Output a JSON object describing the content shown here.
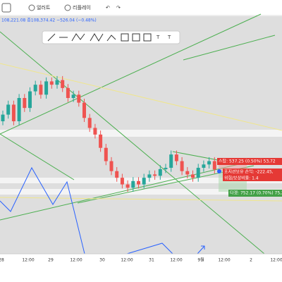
{
  "topbar": {
    "alert": "얼러트",
    "replay": "리플레이"
  },
  "header": {
    "quote": "108,221.08 종108,374.42 −526.04 (−0.48%)"
  },
  "position": {
    "stop": "스탑: 537.25 (0.50%) 53,72",
    "pnl": "포지션보유 손익: -222.45, ",
    "ratio": "위험/보상비율: 1.4",
    "target": "타겟: 752.17 (0.70%) 75,217."
  },
  "chart_data": {
    "type": "candlestick",
    "ylim": [
      107000,
      110500
    ],
    "x_labels": [
      "28",
      "12:00",
      "29",
      "12:00",
      "30",
      "12:00",
      "31",
      "12:00",
      "9월",
      "12:00",
      "2",
      "12:00"
    ],
    "up_color": "#26a69a",
    "down_color": "#ef5350",
    "candles": [
      [
        109100,
        109260,
        109040,
        109200
      ],
      [
        109200,
        109410,
        109140,
        109350
      ],
      [
        109350,
        109410,
        109040,
        109100
      ],
      [
        109100,
        109510,
        109040,
        109450
      ],
      [
        109450,
        109510,
        109240,
        109300
      ],
      [
        109300,
        109610,
        109240,
        109550
      ],
      [
        109550,
        109710,
        109490,
        109650
      ],
      [
        109650,
        109710,
        109440,
        109500
      ],
      [
        109500,
        109760,
        109440,
        109700
      ],
      [
        109700,
        109760,
        109590,
        109650
      ],
      [
        109650,
        109780,
        109590,
        109720
      ],
      [
        109720,
        109780,
        109540,
        109600
      ],
      [
        109600,
        109660,
        109390,
        109450
      ],
      [
        109450,
        109560,
        109390,
        109500
      ],
      [
        109500,
        109560,
        109320,
        109380
      ],
      [
        109380,
        109440,
        109090,
        109150
      ],
      [
        109150,
        109210,
        108940,
        109000
      ],
      [
        109000,
        109060,
        108840,
        108900
      ],
      [
        108900,
        108960,
        108640,
        108700
      ],
      [
        108700,
        108760,
        108440,
        108500
      ],
      [
        108500,
        108560,
        108290,
        108350
      ],
      [
        108350,
        108410,
        108190,
        108250
      ],
      [
        108250,
        108310,
        108090,
        108150
      ],
      [
        108150,
        108210,
        108040,
        108100
      ],
      [
        108100,
        108260,
        108040,
        108200
      ],
      [
        108200,
        108260,
        108090,
        108150
      ],
      [
        108150,
        108310,
        108090,
        108250
      ],
      [
        108250,
        108360,
        108190,
        108300
      ],
      [
        108300,
        108360,
        108220,
        108280
      ],
      [
        108280,
        108440,
        108220,
        108380
      ],
      [
        108380,
        108460,
        108320,
        108400
      ],
      [
        108400,
        108660,
        108340,
        108600
      ],
      [
        108600,
        108660,
        108440,
        108500
      ],
      [
        108500,
        108560,
        108290,
        108350
      ],
      [
        108350,
        108410,
        108240,
        108300
      ],
      [
        108300,
        108360,
        108190,
        108250
      ],
      [
        108250,
        108460,
        108190,
        108400
      ],
      [
        108400,
        108510,
        108340,
        108450
      ],
      [
        108450,
        108560,
        108390,
        108500
      ],
      [
        108500,
        108560,
        108314,
        108374
      ]
    ]
  }
}
